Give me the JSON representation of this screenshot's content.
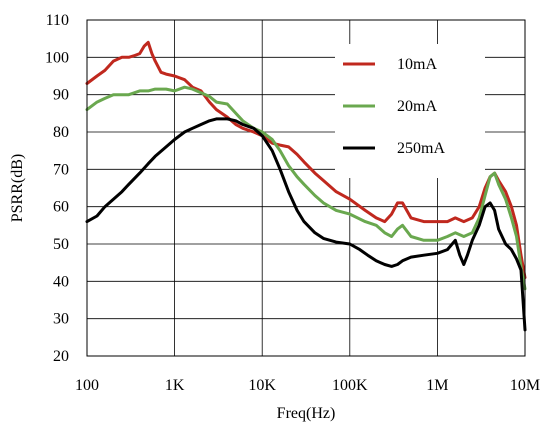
{
  "chart_data": {
    "type": "line",
    "title": "",
    "xlabel": "Freq(Hz)",
    "ylabel": "PSRR(dB)",
    "xscale": "log",
    "xlim": [
      100,
      10000000
    ],
    "ylim": [
      20,
      110
    ],
    "x_ticks": [
      100,
      1000,
      10000,
      100000,
      1000000,
      10000000
    ],
    "x_tick_labels": [
      "100",
      "1K",
      "10K",
      "100K",
      "1M",
      "10M"
    ],
    "y_ticks": [
      20,
      30,
      40,
      50,
      60,
      70,
      80,
      90,
      100,
      110
    ],
    "y_tick_labels": [
      "20",
      "30",
      "40",
      "50",
      "60",
      "70",
      "80",
      "90",
      "100",
      "110"
    ],
    "grid": true,
    "legend_position": "top-right",
    "series": [
      {
        "name": "10mA",
        "color": "#c0281e",
        "x": [
          100,
          130,
          160,
          200,
          250,
          300,
          350,
          400,
          450,
          500,
          550,
          600,
          700,
          800,
          1000,
          1300,
          1600,
          2000,
          2500,
          3000,
          4000,
          5000,
          6000,
          8000,
          10000,
          13000,
          16000,
          20000,
          25000,
          30000,
          40000,
          50000,
          70000,
          100000,
          150000,
          200000,
          250000,
          300000,
          350000,
          400000,
          500000,
          700000,
          1000000,
          1300000,
          1600000,
          2000000,
          2500000,
          3000000,
          3500000,
          4000000,
          4500000,
          5000000,
          6000000,
          7000000,
          8000000,
          9000000,
          10000000
        ],
        "y": [
          93,
          95,
          96.5,
          99,
          100,
          100,
          100.5,
          101,
          103,
          104,
          101,
          99,
          96,
          95.5,
          95,
          94,
          92,
          91,
          88,
          86,
          84,
          82,
          81,
          80,
          79,
          77,
          76.5,
          76,
          74,
          72,
          69,
          67,
          64,
          62,
          59,
          57,
          56,
          58,
          61,
          61,
          57,
          56,
          56,
          56,
          57,
          56,
          57,
          60,
          65,
          68,
          69,
          67,
          64,
          60,
          55,
          47,
          41
        ]
      },
      {
        "name": "20mA",
        "color": "#6aa84f",
        "x": [
          100,
          130,
          160,
          200,
          250,
          300,
          400,
          500,
          600,
          800,
          1000,
          1300,
          1600,
          2000,
          2500,
          3000,
          4000,
          5000,
          6000,
          8000,
          10000,
          13000,
          16000,
          20000,
          25000,
          30000,
          40000,
          50000,
          70000,
          100000,
          150000,
          200000,
          250000,
          300000,
          350000,
          400000,
          500000,
          700000,
          1000000,
          1300000,
          1600000,
          2000000,
          2500000,
          3000000,
          3500000,
          4000000,
          4500000,
          5000000,
          6000000,
          7000000,
          8000000,
          9000000,
          10000000
        ],
        "y": [
          86,
          88,
          89,
          90,
          90,
          90,
          91,
          91,
          91.5,
          91.5,
          91,
          92,
          91.5,
          90.5,
          89.5,
          88,
          87.5,
          85,
          83,
          81,
          80,
          78,
          75,
          71,
          68,
          66,
          63,
          61,
          59,
          58,
          56,
          55,
          53,
          52,
          54,
          55,
          52,
          51,
          51,
          52,
          53,
          52,
          53,
          57,
          63,
          68,
          69,
          66,
          62,
          57,
          52,
          44,
          38
        ]
      },
      {
        "name": "250mA",
        "color": "#000000",
        "x": [
          100,
          130,
          160,
          200,
          250,
          300,
          400,
          500,
          600,
          800,
          1000,
          1300,
          1600,
          2000,
          2500,
          3000,
          4000,
          5000,
          6000,
          8000,
          10000,
          13000,
          16000,
          20000,
          25000,
          30000,
          40000,
          50000,
          70000,
          100000,
          130000,
          160000,
          200000,
          250000,
          300000,
          350000,
          400000,
          500000,
          700000,
          1000000,
          1300000,
          1600000,
          1800000,
          2000000,
          2200000,
          2500000,
          3000000,
          3500000,
          4000000,
          4500000,
          5000000,
          6000000,
          7000000,
          8000000,
          9000000,
          10000000
        ],
        "y": [
          56,
          57.5,
          60,
          62,
          64,
          66,
          69,
          71.5,
          73.5,
          76,
          78,
          80,
          81,
          82,
          83,
          83.5,
          83.5,
          83,
          82,
          81,
          79,
          75,
          70,
          64,
          59,
          56,
          53,
          51.5,
          50.5,
          50,
          48.5,
          47,
          45.5,
          44.5,
          44,
          44.5,
          45.5,
          46.5,
          47,
          47.5,
          48.5,
          51,
          47,
          44.5,
          47,
          51,
          55,
          60,
          61,
          59,
          54,
          50,
          48.5,
          46,
          43,
          27
        ]
      }
    ]
  }
}
